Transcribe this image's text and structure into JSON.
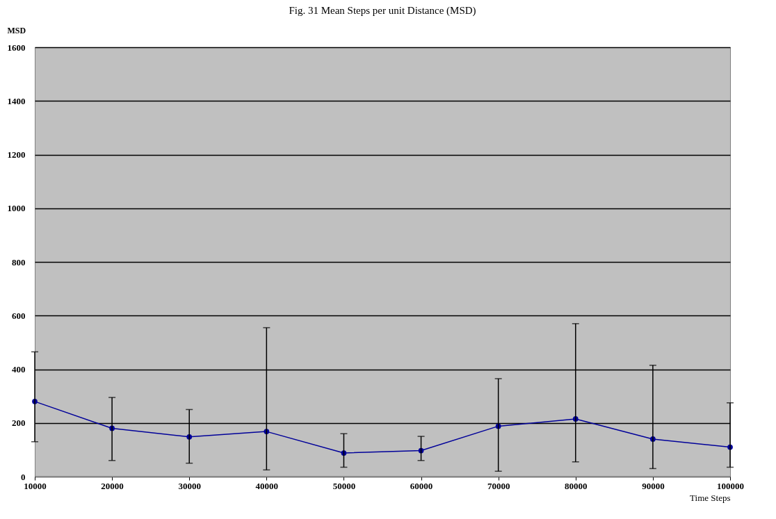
{
  "chart_data": {
    "type": "line",
    "title": "Fig. 31 Mean Steps per unit Distance (MSD)",
    "xlabel": "Time Steps",
    "ylabel": "MSD",
    "x": [
      10000,
      20000,
      30000,
      40000,
      50000,
      60000,
      70000,
      80000,
      90000,
      100000
    ],
    "series": [
      {
        "color": "#000099",
        "values": [
          280,
          180,
          148,
          168,
          88,
          97,
          188,
          215,
          140,
          110
        ],
        "errors": [
          [
            130,
            465
          ],
          [
            60,
            295
          ],
          [
            50,
            250
          ],
          [
            25,
            555
          ],
          [
            35,
            160
          ],
          [
            60,
            150
          ],
          [
            20,
            365
          ],
          [
            55,
            570
          ],
          [
            30,
            415
          ],
          [
            35,
            275
          ]
        ]
      }
    ],
    "xlim": [
      10000,
      100000
    ],
    "xticks": [
      10000,
      20000,
      30000,
      40000,
      50000,
      60000,
      70000,
      80000,
      90000,
      100000
    ],
    "ylim": [
      0,
      1600
    ],
    "yticks": [
      0,
      200,
      400,
      600,
      800,
      1000,
      1200,
      1400,
      1600
    ],
    "grid": "y",
    "marker": "circle",
    "line_style": "solid"
  }
}
